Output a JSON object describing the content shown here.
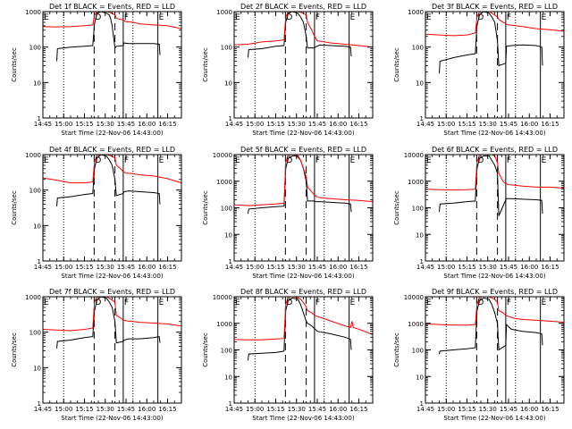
{
  "colors": {
    "events": "#000000",
    "lld": "#ff0000",
    "axis": "#000000"
  },
  "shared": {
    "x_tick_labels": [
      "14:45",
      "15:00",
      "15:15",
      "15:30",
      "15:45",
      "16:00",
      "16:15"
    ],
    "x_start_minutes_after_1445": 0,
    "x_end_minutes_after_1445": 100,
    "xlabel": "Start Time (22-Nov-06 14:43:00)",
    "ylabel": "Counts/sec",
    "y_scale": "log",
    "dotted_lines_minutes": [
      15,
      65
    ],
    "dashed_lines_minutes": [
      37,
      52
    ],
    "solid_lines_minutes": [
      58,
      83
    ],
    "markers": [
      {
        "label": "E",
        "minute": 0
      },
      {
        "label": "D",
        "minute": 37
      },
      {
        "label": "F",
        "minute": 58
      },
      {
        "label": "E",
        "minute": 83
      }
    ]
  },
  "chart_data": [
    {
      "type": "line",
      "title": "Det 1f BLACK = Events, RED = LLD",
      "ylim": [
        1,
        1000
      ],
      "y_tick_labels": [
        "1",
        "10",
        "100",
        "1000"
      ],
      "series": [
        {
          "name": "Events",
          "x": [
            10,
            10.5,
            20,
            30,
            36,
            37.2,
            39,
            42,
            46,
            48,
            49,
            50,
            52,
            53,
            58,
            58.5,
            62,
            70,
            80,
            84,
            84.5
          ],
          "y": [
            40,
            90,
            100,
            105,
            110,
            450,
            900,
            1000,
            900,
            800,
            600,
            400,
            95,
            105,
            110,
            130,
            125,
            125,
            125,
            120,
            60
          ]
        },
        {
          "name": "LLD",
          "x": [
            0,
            10,
            20,
            30,
            36,
            37.2,
            39,
            43,
            46,
            48,
            50,
            52,
            53,
            56,
            58,
            60,
            65,
            70,
            80,
            90,
            100
          ],
          "y": [
            380,
            370,
            380,
            400,
            420,
            800,
            1000,
            1000,
            1000,
            950,
            900,
            800,
            650,
            600,
            580,
            520,
            500,
            450,
            420,
            400,
            330
          ]
        }
      ]
    },
    {
      "type": "line",
      "title": "Det 2f BLACK = Events, RED = LLD",
      "ylim": [
        1,
        1000
      ],
      "y_tick_labels": [
        "1",
        "10",
        "100",
        "1000"
      ],
      "series": [
        {
          "name": "Events",
          "x": [
            10,
            10.5,
            20,
            30,
            36,
            37.2,
            39,
            42,
            46,
            48,
            50,
            52,
            53,
            58,
            58.5,
            62,
            70,
            80,
            84,
            84.5
          ],
          "y": [
            50,
            85,
            90,
            105,
            110,
            500,
            900,
            1000,
            900,
            700,
            500,
            200,
            95,
            95,
            100,
            115,
            110,
            105,
            100,
            55
          ]
        },
        {
          "name": "LLD",
          "x": [
            0,
            10,
            20,
            30,
            36,
            37.2,
            39,
            43,
            46,
            48,
            50,
            52,
            53,
            56,
            58,
            60,
            65,
            70,
            80,
            90,
            100
          ],
          "y": [
            115,
            120,
            140,
            150,
            160,
            700,
            1000,
            1000,
            1000,
            950,
            900,
            800,
            500,
            300,
            200,
            150,
            140,
            130,
            120,
            110,
            100
          ]
        }
      ]
    },
    {
      "type": "line",
      "title": "Det 3f BLACK = Events, RED = LLD",
      "ylim": [
        1,
        1000
      ],
      "y_tick_labels": [
        "1",
        "10",
        "100",
        "1000"
      ],
      "series": [
        {
          "name": "Events",
          "x": [
            10,
            10.5,
            20,
            30,
            36,
            37.2,
            39,
            42,
            46,
            48,
            50,
            52,
            53,
            58,
            58.5,
            62,
            70,
            80,
            84,
            84.5
          ],
          "y": [
            18,
            40,
            50,
            60,
            65,
            400,
            800,
            1000,
            900,
            700,
            500,
            150,
            30,
            35,
            105,
            110,
            115,
            110,
            100,
            30
          ]
        },
        {
          "name": "LLD",
          "x": [
            0,
            10,
            20,
            30,
            36,
            37.2,
            39,
            43,
            46,
            48,
            50,
            52,
            53,
            56,
            58,
            60,
            65,
            70,
            80,
            90,
            100
          ],
          "y": [
            230,
            220,
            210,
            220,
            250,
            700,
            1000,
            1000,
            1000,
            900,
            800,
            700,
            600,
            500,
            450,
            420,
            400,
            380,
            330,
            310,
            280
          ]
        }
      ]
    },
    {
      "type": "line",
      "title": "Det 4f BLACK = Events, RED = LLD",
      "ylim": [
        1,
        1000
      ],
      "y_tick_labels": [
        "1",
        "10",
        "100",
        "1000"
      ],
      "series": [
        {
          "name": "Events",
          "x": [
            10,
            10.5,
            20,
            30,
            36,
            37.2,
            39,
            42,
            46,
            48,
            50,
            52,
            53,
            58,
            58.5,
            62,
            70,
            80,
            84,
            84.5
          ],
          "y": [
            35,
            60,
            65,
            75,
            80,
            400,
            800,
            1000,
            900,
            700,
            500,
            200,
            70,
            80,
            90,
            95,
            90,
            85,
            80,
            40
          ]
        },
        {
          "name": "LLD",
          "x": [
            0,
            10,
            20,
            30,
            36,
            37.2,
            39,
            43,
            46,
            48,
            50,
            52,
            53,
            56,
            58,
            60,
            65,
            70,
            80,
            90,
            100
          ],
          "y": [
            220,
            190,
            160,
            160,
            170,
            600,
            1000,
            1000,
            1000,
            950,
            900,
            800,
            500,
            400,
            330,
            300,
            290,
            270,
            250,
            210,
            160
          ]
        }
      ]
    },
    {
      "type": "line",
      "title": "Det 5f BLACK = Events, RED = LLD",
      "ylim": [
        1,
        10000
      ],
      "y_tick_labels": [
        "1",
        "10",
        "100",
        "1000",
        "10000"
      ],
      "series": [
        {
          "name": "Events",
          "x": [
            10,
            10.5,
            20,
            30,
            36,
            37.2,
            39,
            42,
            46,
            48,
            50,
            52,
            53,
            58,
            58.5,
            62,
            70,
            80,
            84,
            84.5
          ],
          "y": [
            60,
            90,
            100,
            110,
            115,
            3000,
            7000,
            9000,
            9000,
            6000,
            3000,
            1000,
            180,
            180,
            170,
            170,
            160,
            150,
            140,
            70
          ]
        },
        {
          "name": "LLD",
          "x": [
            0,
            10,
            20,
            30,
            36,
            37.2,
            39,
            43,
            46,
            48,
            50,
            52,
            53,
            56,
            58,
            60,
            65,
            70,
            80,
            90,
            100
          ],
          "y": [
            130,
            120,
            130,
            140,
            150,
            5000,
            10000,
            10000,
            8000,
            6000,
            3000,
            1500,
            600,
            400,
            300,
            250,
            230,
            220,
            200,
            190,
            170
          ]
        }
      ]
    },
    {
      "type": "line",
      "title": "Det 6f BLACK = Events, RED = LLD",
      "ylim": [
        1,
        10000
      ],
      "y_tick_labels": [
        "1",
        "10",
        "100",
        "1000",
        "10000"
      ],
      "series": [
        {
          "name": "Events",
          "x": [
            10,
            10.5,
            20,
            30,
            36,
            37.2,
            39,
            42,
            46,
            48,
            50,
            52,
            53,
            58,
            58.5,
            62,
            70,
            80,
            84,
            84.5
          ],
          "y": [
            70,
            140,
            150,
            170,
            180,
            3000,
            7000,
            9000,
            9000,
            6000,
            4000,
            2000,
            50,
            200,
            220,
            220,
            210,
            200,
            190,
            60
          ]
        },
        {
          "name": "LLD",
          "x": [
            0,
            10,
            20,
            30,
            36,
            37.2,
            39,
            43,
            46,
            48,
            50,
            52,
            53,
            56,
            58,
            60,
            65,
            70,
            80,
            90,
            100
          ],
          "y": [
            500,
            480,
            470,
            480,
            500,
            5000,
            10000,
            10000,
            10000,
            10000,
            9000,
            5000,
            2000,
            1000,
            800,
            750,
            700,
            650,
            600,
            600,
            550
          ]
        }
      ]
    },
    {
      "type": "line",
      "title": "Det 7f BLACK = Events, RED = LLD",
      "ylim": [
        1,
        1000
      ],
      "y_tick_labels": [
        "1",
        "10",
        "100",
        "1000"
      ],
      "series": [
        {
          "name": "Events",
          "x": [
            10,
            10.5,
            20,
            30,
            36,
            37.2,
            39,
            42,
            46,
            48,
            50,
            52,
            53,
            58,
            58.5,
            62,
            70,
            80,
            84,
            84.5
          ],
          "y": [
            35,
            55,
            60,
            70,
            75,
            400,
            800,
            1000,
            900,
            700,
            500,
            200,
            50,
            55,
            60,
            65,
            65,
            70,
            75,
            50
          ]
        },
        {
          "name": "LLD",
          "x": [
            0,
            10,
            20,
            30,
            36,
            37.2,
            39,
            43,
            46,
            48,
            50,
            52,
            53,
            56,
            58,
            60,
            65,
            70,
            80,
            90,
            100
          ],
          "y": [
            120,
            115,
            110,
            120,
            130,
            700,
            1000,
            1000,
            1000,
            900,
            800,
            700,
            300,
            250,
            220,
            210,
            200,
            190,
            180,
            170,
            150
          ]
        }
      ]
    },
    {
      "type": "line",
      "title": "Det 8f BLACK = Events, RED = LLD",
      "ylim": [
        1,
        10000
      ],
      "y_tick_labels": [
        "1",
        "10",
        "100",
        "1000",
        "10000"
      ],
      "series": [
        {
          "name": "Events",
          "x": [
            10,
            10.5,
            20,
            30,
            36,
            37.2,
            39,
            42,
            46,
            48,
            50,
            52,
            53,
            56,
            60,
            70,
            80,
            84,
            84.5
          ],
          "y": [
            40,
            70,
            75,
            80,
            90,
            3000,
            7000,
            9000,
            8000,
            5000,
            2500,
            1200,
            1000,
            800,
            500,
            400,
            300,
            250,
            100
          ]
        },
        {
          "name": "LLD",
          "x": [
            0,
            10,
            20,
            30,
            36,
            37.2,
            39,
            43,
            46,
            48,
            50,
            52,
            53,
            56,
            58,
            60,
            65,
            70,
            80,
            84,
            85,
            86,
            90,
            100
          ],
          "y": [
            250,
            240,
            240,
            260,
            270,
            5000,
            10000,
            10000,
            9000,
            8000,
            6000,
            4000,
            3000,
            2500,
            2000,
            1800,
            1500,
            1200,
            800,
            700,
            1200,
            700,
            600,
            380
          ]
        }
      ]
    },
    {
      "type": "line",
      "title": "Det 9f BLACK = Events, RED = LLD",
      "ylim": [
        1,
        10000
      ],
      "y_tick_labels": [
        "1",
        "10",
        "100",
        "1000",
        "10000"
      ],
      "series": [
        {
          "name": "Events",
          "x": [
            10,
            10.5,
            20,
            30,
            36,
            37.2,
            39,
            42,
            46,
            48,
            50,
            52,
            53,
            58,
            58.5,
            62,
            70,
            80,
            84,
            84.5
          ],
          "y": [
            70,
            90,
            100,
            110,
            120,
            3000,
            7000,
            9000,
            8000,
            5000,
            2500,
            1000,
            100,
            150,
            900,
            600,
            500,
            450,
            400,
            150
          ]
        },
        {
          "name": "LLD",
          "x": [
            0,
            10,
            20,
            30,
            36,
            37.2,
            39,
            43,
            46,
            48,
            50,
            52,
            53,
            56,
            58,
            60,
            65,
            70,
            80,
            90,
            100
          ],
          "y": [
            950,
            900,
            850,
            850,
            900,
            5000,
            10000,
            10000,
            10000,
            9000,
            8000,
            6000,
            3000,
            2500,
            2000,
            1800,
            1500,
            1400,
            1300,
            1200,
            1100
          ]
        }
      ]
    }
  ]
}
